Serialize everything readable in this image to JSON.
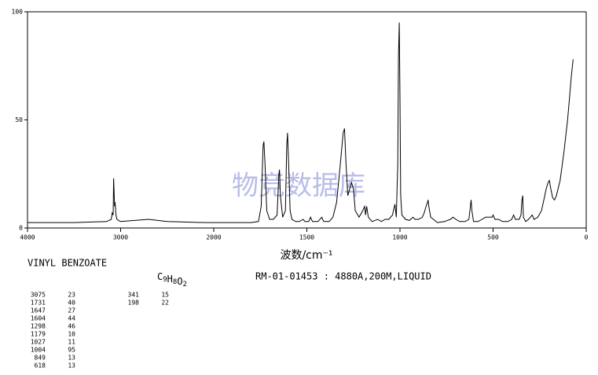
{
  "chart_data": {
    "type": "line",
    "title": "VINYL BENZOATE",
    "formula": "C9H8O2",
    "sample_info": "RM-01-01453 : 4880A,200M,LIQUID",
    "xlabel": "波数/cm⁻¹",
    "watermark": "物竞数据库",
    "color": "#000000",
    "xlim": [
      4000,
      0
    ],
    "x_scale_break": 2000,
    "x_scale_ratio": 2,
    "xticks": [
      4000,
      3000,
      2000,
      1500,
      1000,
      500,
      0
    ],
    "ylim": [
      0,
      100
    ],
    "yticks": [
      0,
      50,
      100
    ],
    "x": [
      4000,
      3500,
      3150,
      3100,
      3090,
      3080,
      3075,
      3065,
      3060,
      3050,
      3040,
      3020,
      3000,
      2700,
      2500,
      2100,
      1800,
      1760,
      1745,
      1735,
      1731,
      1725,
      1715,
      1700,
      1680,
      1660,
      1650,
      1647,
      1642,
      1630,
      1615,
      1608,
      1604,
      1598,
      1590,
      1580,
      1560,
      1540,
      1520,
      1510,
      1490,
      1480,
      1470,
      1440,
      1420,
      1410,
      1380,
      1360,
      1340,
      1320,
      1305,
      1298,
      1290,
      1280,
      1270,
      1260,
      1250,
      1240,
      1220,
      1200,
      1190,
      1185,
      1179,
      1170,
      1150,
      1120,
      1100,
      1080,
      1060,
      1040,
      1035,
      1027,
      1020,
      1012,
      1008,
      1004,
      1000,
      996,
      990,
      970,
      950,
      930,
      920,
      900,
      880,
      870,
      860,
      852,
      849,
      845,
      835,
      820,
      800,
      760,
      730,
      715,
      700,
      680,
      650,
      630,
      622,
      618,
      614,
      605,
      580,
      560,
      540,
      520,
      505,
      500,
      490,
      470,
      450,
      420,
      400,
      390,
      380,
      360,
      350,
      345,
      341,
      337,
      325,
      310,
      300,
      290,
      280,
      260,
      240,
      225,
      215,
      205,
      198,
      190,
      180,
      170,
      160,
      140,
      120,
      100,
      90,
      80,
      75,
      70
    ],
    "values": [
      2.5,
      2.5,
      3,
      4,
      7,
      6,
      23,
      10,
      12,
      6,
      4,
      3.5,
      3,
      4,
      3,
      2.5,
      2.5,
      3,
      10,
      38,
      40,
      30,
      8,
      4,
      4,
      6,
      25,
      27,
      15,
      5,
      8,
      38,
      44,
      30,
      8,
      4,
      3,
      3,
      4,
      3,
      3,
      5,
      3,
      3,
      5,
      3,
      3,
      5,
      12,
      30,
      44,
      46,
      30,
      15,
      18,
      21,
      18,
      8,
      5,
      8,
      10,
      6,
      10,
      5,
      3,
      4,
      3,
      4,
      4,
      6,
      8,
      11,
      5,
      30,
      80,
      95,
      60,
      15,
      6,
      4,
      3.5,
      5,
      4,
      4,
      5,
      7,
      10,
      12,
      13,
      10,
      5,
      4,
      2.5,
      3,
      4,
      5,
      4,
      3,
      3,
      4,
      10,
      13,
      8,
      3,
      3,
      4,
      5,
      5,
      5,
      6,
      4,
      4,
      3,
      3,
      4,
      6,
      4,
      4,
      6,
      13,
      15,
      5,
      3,
      4,
      5,
      6,
      4,
      5,
      8,
      14,
      18,
      21,
      22,
      18,
      14,
      13,
      15,
      22,
      35,
      50,
      60,
      70,
      74,
      78
    ],
    "peaks": {
      "wavenumbers": [
        3075,
        1731,
        1647,
        1604,
        1298,
        1179,
        1027,
        1004,
        849,
        618,
        341,
        198
      ],
      "intensities": [
        23,
        40,
        27,
        44,
        46,
        10,
        11,
        95,
        13,
        13,
        15,
        22
      ]
    }
  }
}
